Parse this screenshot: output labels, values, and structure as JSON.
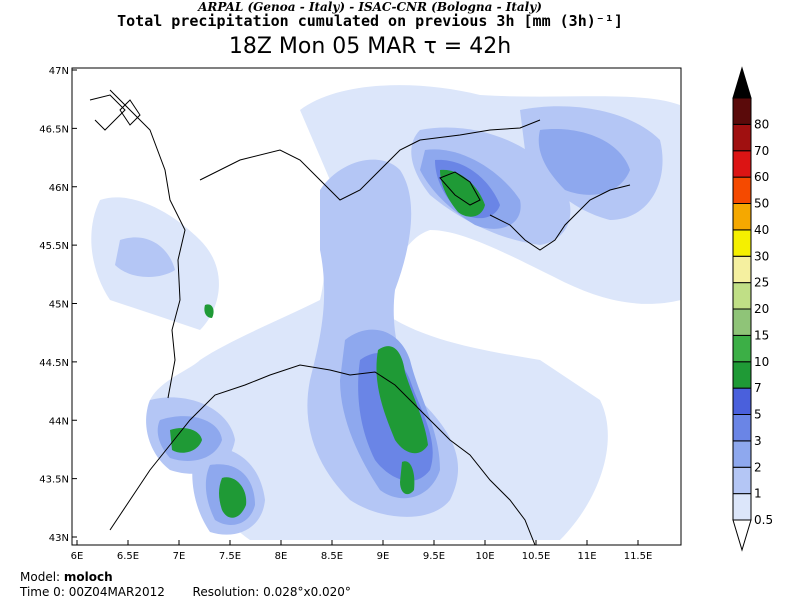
{
  "header": {
    "source_line": "ARPAL (Genoa - Italy)  -  ISAC-CNR (Bologna - Italy)",
    "title": "Total precipitation cumulated on previous 3h [mm (3h)⁻¹]",
    "valid_time": "18Z Mon 05 MAR  τ = 42h"
  },
  "map": {
    "lat_labels": [
      "47N",
      "46.5N",
      "46N",
      "45.5N",
      "45N",
      "44.5N",
      "44N",
      "43.5N",
      "43N"
    ],
    "lon_labels": [
      "6E",
      "6.5E",
      "7E",
      "7.5E",
      "8E",
      "8.5E",
      "9E",
      "9.5E",
      "10E",
      "10.5E",
      "11E",
      "11.5E"
    ]
  },
  "legend": {
    "thresholds": [
      "0.5",
      "1",
      "2",
      "3",
      "5",
      "7",
      "10",
      "15",
      "20",
      "25",
      "30",
      "40",
      "50",
      "60",
      "70",
      "80"
    ],
    "colors": [
      "#ffffff",
      "#dce6fa",
      "#b4c6f5",
      "#8ea8ee",
      "#6a85e6",
      "#4a60dc",
      "#1f9a36",
      "#3caf46",
      "#8fc478",
      "#c0df86",
      "#f5f0a0",
      "#f5f000",
      "#f5a800",
      "#f54a00",
      "#dc1414",
      "#a01010",
      "#5a0a0a",
      "#000000"
    ]
  },
  "footer": {
    "model_label": "Model:",
    "model_name": "moloch",
    "time0_label": "Time 0:",
    "time0_value": "00Z04MAR2012",
    "resolution_label": "Resolution:",
    "resolution_value": "0.028°x0.020°"
  }
}
